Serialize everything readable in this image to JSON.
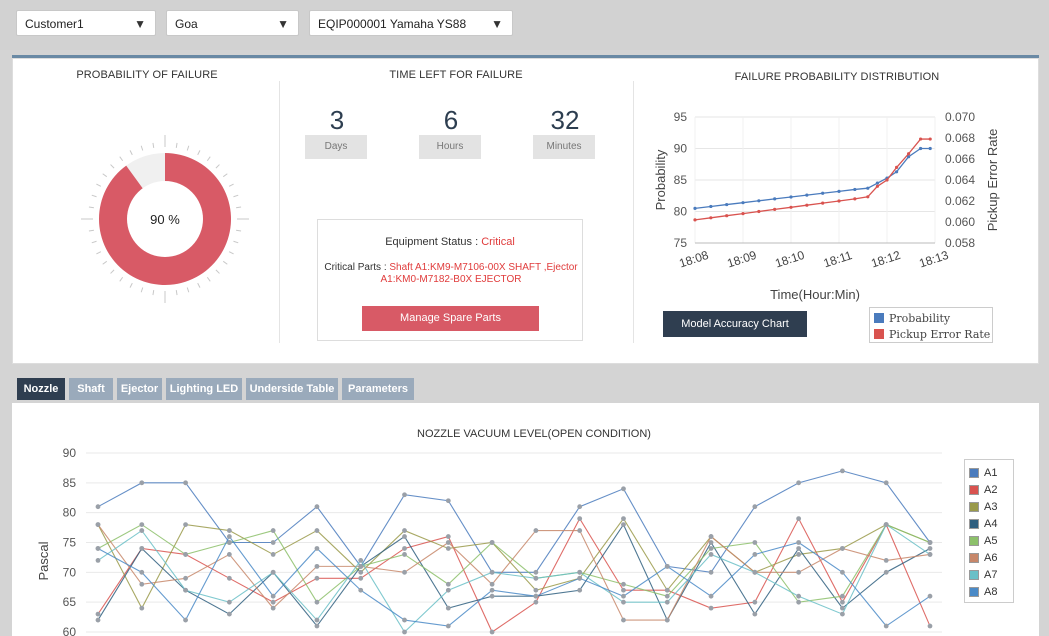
{
  "filters": {
    "customer": "Customer1",
    "location": "Goa",
    "equipment": "EQIP000001 Yamaha YS88"
  },
  "probability_of_failure": {
    "title": "PROBABILITY OF FAILURE",
    "value_label": "90 %",
    "percent": 90,
    "color": "#d85a66"
  },
  "time_left": {
    "title": "TIME LEFT FOR FAILURE",
    "days": "3",
    "days_label": "Days",
    "hours": "6",
    "hours_label": "Hours",
    "minutes": "32",
    "minutes_label": "Minutes"
  },
  "status": {
    "equipment_label": "Equipment Status : ",
    "equipment_value": "Critical",
    "parts_label": "Critical Parts : ",
    "parts_value_line1": "Shaft A1:KM9-M7106-00X SHAFT ,Ejector",
    "parts_value_line2": "A1:KM0-M7182-B0X EJECTOR",
    "button": "Manage Spare Parts"
  },
  "distribution": {
    "title": "FAILURE PROBABILITY DISTRIBUTION",
    "button": "Model Accuracy Chart",
    "legend": [
      "Probability",
      "Pickup Error Rate"
    ]
  },
  "tabs": [
    "Nozzle",
    "Shaft",
    "Ejector",
    "Lighting LED",
    "Underside Table",
    "Parameters"
  ],
  "active_tab": 0,
  "chart_data": [
    {
      "type": "line",
      "title": "FAILURE PROBABILITY DISTRIBUTION",
      "xlabel": "Time(Hour:Min)",
      "ylabel": "Probability",
      "y2label": "Pickup Error Rate",
      "x_ticks": [
        "18:08",
        "18:09",
        "18:10",
        "18:11",
        "18:12",
        "18:13"
      ],
      "ylim": [
        75,
        95
      ],
      "y_ticks": [
        75,
        80,
        85,
        90,
        95
      ],
      "y2lim": [
        0.058,
        0.07
      ],
      "y2_ticks": [
        "0.058",
        "0.060",
        "0.062",
        "0.064",
        "0.066",
        "0.068",
        "0.070"
      ],
      "x": [
        0,
        0.33,
        0.66,
        1,
        1.33,
        1.66,
        2,
        2.33,
        2.66,
        3,
        3.33,
        3.6,
        3.8,
        4.0,
        4.2,
        4.45,
        4.7,
        4.9
      ],
      "series": [
        {
          "name": "Probability",
          "color": "#4a7bbd",
          "values": [
            80.5,
            80.8,
            81.1,
            81.4,
            81.7,
            82.0,
            82.3,
            82.6,
            82.9,
            83.2,
            83.5,
            83.7,
            84.5,
            85.3,
            86.3,
            88.7,
            90.0,
            90.0
          ]
        },
        {
          "name": "Pickup Error Rate",
          "color": "#d9534f",
          "values": [
            0.0602,
            0.0604,
            0.0606,
            0.0608,
            0.061,
            0.0612,
            0.0614,
            0.0616,
            0.0618,
            0.062,
            0.0622,
            0.0624,
            0.0634,
            0.064,
            0.0652,
            0.0665,
            0.0679,
            0.0679
          ]
        }
      ]
    },
    {
      "type": "line",
      "title": "NOZZLE VACUUM LEVEL(OPEN CONDITION)",
      "ylabel": "Pascal",
      "ylim": [
        60,
        90
      ],
      "y_ticks": [
        60,
        65,
        70,
        75,
        80,
        85,
        90
      ],
      "series": [
        {
          "name": "A1",
          "color": "#4a7bbd",
          "values": [
            81,
            85,
            85,
            75,
            75,
            81,
            71,
            83,
            82,
            70,
            70,
            81,
            84,
            71,
            70,
            81,
            85,
            87,
            85,
            75
          ]
        },
        {
          "name": "A2",
          "color": "#d9534f",
          "values": [
            63,
            74,
            73,
            69,
            65,
            69,
            69,
            74,
            76,
            60,
            65,
            79,
            67,
            67,
            64,
            65,
            79,
            65,
            78,
            61
          ]
        },
        {
          "name": "A3",
          "color": "#9a9a4a",
          "values": [
            78,
            64,
            78,
            77,
            73,
            77,
            70,
            77,
            74,
            75,
            67,
            69,
            79,
            67,
            76,
            70,
            73,
            74,
            78,
            75
          ]
        },
        {
          "name": "A4",
          "color": "#2f5f7f",
          "values": [
            62,
            74,
            67,
            63,
            70,
            61,
            71,
            76,
            64,
            66,
            66,
            67,
            78,
            62,
            75,
            63,
            74,
            64,
            70,
            74
          ]
        },
        {
          "name": "A5",
          "color": "#8cc06a",
          "values": [
            74,
            78,
            73,
            75,
            77,
            65,
            71,
            73,
            68,
            75,
            69,
            70,
            68,
            66,
            74,
            75,
            65,
            66,
            78,
            75
          ]
        },
        {
          "name": "A6",
          "color": "#c7876a",
          "values": [
            78,
            68,
            69,
            73,
            64,
            71,
            71,
            70,
            75,
            68,
            77,
            77,
            62,
            62,
            76,
            70,
            70,
            74,
            72,
            73
          ]
        },
        {
          "name": "A7",
          "color": "#6ac0c7",
          "values": [
            72,
            77,
            67,
            65,
            70,
            62,
            72,
            60,
            67,
            70,
            69,
            70,
            65,
            65,
            73,
            70,
            66,
            63,
            78,
            73
          ]
        },
        {
          "name": "A8",
          "color": "#4a8ac7",
          "values": [
            74,
            70,
            62,
            76,
            66,
            74,
            67,
            62,
            61,
            67,
            66,
            69,
            66,
            71,
            66,
            73,
            75,
            70,
            61,
            66
          ]
        }
      ]
    }
  ]
}
